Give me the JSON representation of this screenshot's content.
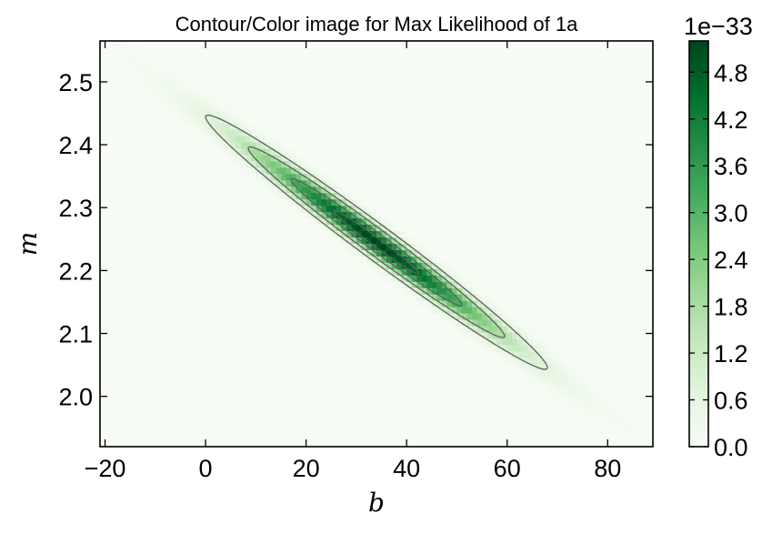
{
  "chart_data": {
    "type": "heatmap",
    "title": "Contour/Color image for Max Likelihood of 1a",
    "xlabel": "b",
    "ylabel": "m",
    "xlim": [
      -21,
      89
    ],
    "ylim": [
      1.92,
      2.565
    ],
    "x_ticks": [
      -20,
      0,
      20,
      40,
      60,
      80
    ],
    "x_tick_labels": [
      "−20",
      "0",
      "20",
      "40",
      "60",
      "80"
    ],
    "y_ticks": [
      2.0,
      2.1,
      2.2,
      2.3,
      2.4,
      2.5
    ],
    "y_tick_labels": [
      "2.0",
      "2.1",
      "2.2",
      "2.3",
      "2.4",
      "2.5"
    ],
    "colormap": "Greens",
    "colorbar": {
      "min": 0.0,
      "max": 5.2,
      "ticks": [
        0.0,
        0.6,
        1.2,
        1.8,
        2.4,
        3.0,
        3.6,
        4.2,
        4.8
      ],
      "tick_labels": [
        "0.0",
        "0.6",
        "1.2",
        "1.8",
        "2.4",
        "3.0",
        "3.6",
        "4.2",
        "4.8"
      ],
      "offset_text": "1e−33"
    },
    "peak": {
      "b": 34,
      "m": 2.245,
      "value": 5.2
    },
    "contour_color": "#606060",
    "contour_levels_sigma": [
      0.5,
      1.0,
      1.5,
      2.0
    ]
  }
}
